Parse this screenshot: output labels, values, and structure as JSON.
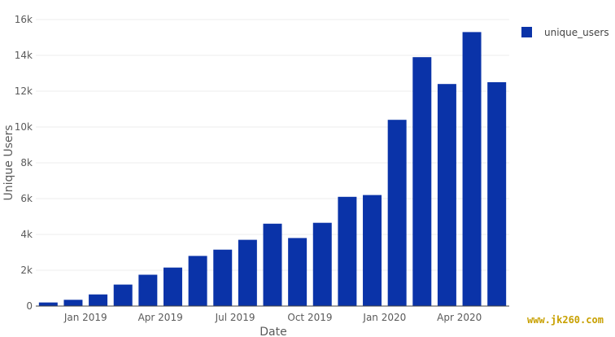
{
  "chart_data": {
    "type": "bar",
    "categories": [
      "2018-11",
      "2018-12",
      "2019-01",
      "2019-02",
      "2019-03",
      "2019-04",
      "2019-05",
      "2019-06",
      "2019-07",
      "2019-08",
      "2019-09",
      "2019-10",
      "2019-11",
      "2019-12",
      "2020-01",
      "2020-02",
      "2020-03",
      "2020-04",
      "2020-05"
    ],
    "series": [
      {
        "name": "unique_users",
        "color": "#0a33a8",
        "values": [
          200,
          350,
          650,
          1200,
          1750,
          2150,
          2800,
          3150,
          3700,
          4600,
          3800,
          4650,
          6100,
          6200,
          10400,
          13900,
          12400,
          15300,
          12500
        ]
      }
    ],
    "xlabel": "Date",
    "ylabel": "Unique Users",
    "ylim": [
      0,
      16000
    ],
    "y_ticks": [
      {
        "value": 0,
        "label": "0"
      },
      {
        "value": 2000,
        "label": "2k"
      },
      {
        "value": 4000,
        "label": "4k"
      },
      {
        "value": 6000,
        "label": "6k"
      },
      {
        "value": 8000,
        "label": "8k"
      },
      {
        "value": 10000,
        "label": "10k"
      },
      {
        "value": 12000,
        "label": "12k"
      },
      {
        "value": 14000,
        "label": "14k"
      },
      {
        "value": 16000,
        "label": "16k"
      }
    ],
    "x_ticks": [
      {
        "category": "2019-01",
        "label": "Jan 2019"
      },
      {
        "category": "2019-04",
        "label": "Apr 2019"
      },
      {
        "category": "2019-07",
        "label": "Jul 2019"
      },
      {
        "category": "2019-10",
        "label": "Oct 2019"
      },
      {
        "category": "2020-01",
        "label": "Jan 2020"
      },
      {
        "category": "2020-04",
        "label": "Apr 2020"
      }
    ],
    "grid": true,
    "legend_position": "top-right"
  },
  "watermark": "www.jk260.com"
}
